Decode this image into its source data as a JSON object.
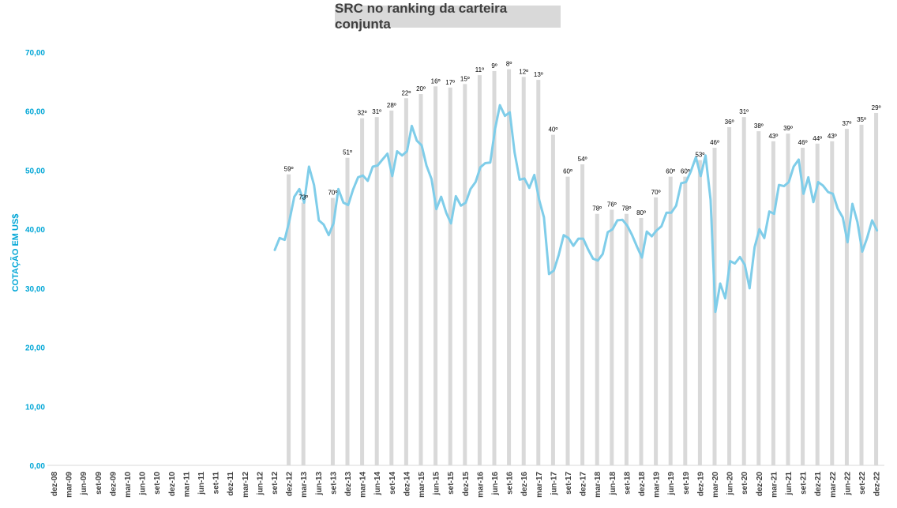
{
  "chart_data": {
    "type": "bar+line",
    "title": "SRC no ranking da carteira conjunta",
    "ylabel": "COTAÇÃO EM US$",
    "ylim": [
      0,
      70
    ],
    "yticks": [
      "0,00",
      "10,00",
      "20,00",
      "30,00",
      "40,00",
      "50,00",
      "60,00",
      "70,00"
    ],
    "line_color": "#7fcde9",
    "bar_color": "#d9d9d9",
    "axis_color": "#00a6d6",
    "xtick_labels": [
      "dez-08",
      "mar-09",
      "jun-09",
      "set-09",
      "dez-09",
      "mar-10",
      "jun-10",
      "set-10",
      "dez-10",
      "mar-11",
      "jun-11",
      "set-11",
      "dez-11",
      "mar-12",
      "jun-12",
      "set-12",
      "dez-12",
      "mar-13",
      "jun-13",
      "set-13",
      "dez-13",
      "mar-14",
      "jun-14",
      "set-14",
      "dez-14",
      "mar-15",
      "jun-15",
      "set-15",
      "dez-15",
      "mar-16",
      "jun-16",
      "set-16",
      "dez-16",
      "mar-17",
      "jun-17",
      "set-17",
      "dez-17",
      "mar-18",
      "jun-18",
      "set-18",
      "dez-18",
      "mar-19",
      "jun-19",
      "set-19",
      "dez-19",
      "mar-20",
      "jun-20",
      "set-20",
      "dez-20",
      "mar-21",
      "jun-21",
      "set-21",
      "dez-21",
      "mar-22",
      "jun-22",
      "set-22",
      "dez-22"
    ],
    "ranking_bars": [
      {
        "period": "dez-12",
        "value": 49.3,
        "label": "59º"
      },
      {
        "period": "mar-13",
        "value": 44.5,
        "label": "73º"
      },
      {
        "period": "set-13",
        "value": 45.3,
        "label": "70º"
      },
      {
        "period": "dez-13",
        "value": 52.1,
        "label": "51º"
      },
      {
        "period": "mar-14",
        "value": 58.8,
        "label": "32º"
      },
      {
        "period": "jun-14",
        "value": 59.0,
        "label": "31º"
      },
      {
        "period": "set-14",
        "value": 60.1,
        "label": "28º"
      },
      {
        "period": "dez-14",
        "value": 62.2,
        "label": "22º"
      },
      {
        "period": "mar-15",
        "value": 62.9,
        "label": "20º"
      },
      {
        "period": "jun-15",
        "value": 64.2,
        "label": "16º"
      },
      {
        "period": "set-15",
        "value": 64.0,
        "label": "17º"
      },
      {
        "period": "dez-15",
        "value": 64.6,
        "label": "15º"
      },
      {
        "period": "mar-16",
        "value": 66.1,
        "label": "11º"
      },
      {
        "period": "jun-16",
        "value": 66.8,
        "label": "9º"
      },
      {
        "period": "set-16",
        "value": 67.1,
        "label": "8º"
      },
      {
        "period": "dez-16",
        "value": 65.8,
        "label": "12º"
      },
      {
        "period": "mar-17",
        "value": 65.3,
        "label": "13º"
      },
      {
        "period": "jun-17",
        "value": 56.0,
        "label": "40º"
      },
      {
        "period": "set-17",
        "value": 48.9,
        "label": "60º"
      },
      {
        "period": "dez-17",
        "value": 51.0,
        "label": "54º"
      },
      {
        "period": "mar-18",
        "value": 42.6,
        "label": "78º"
      },
      {
        "period": "jun-18",
        "value": 43.3,
        "label": "76º"
      },
      {
        "period": "set-18",
        "value": 42.6,
        "label": "78º"
      },
      {
        "period": "dez-18",
        "value": 41.9,
        "label": "80º"
      },
      {
        "period": "mar-19",
        "value": 45.4,
        "label": "70º"
      },
      {
        "period": "jun-19",
        "value": 48.9,
        "label": "60º"
      },
      {
        "period": "set-19",
        "value": 48.9,
        "label": "60º"
      },
      {
        "period": "dez-19",
        "value": 51.7,
        "label": "53º"
      },
      {
        "period": "mar-20",
        "value": 53.8,
        "label": "46º"
      },
      {
        "period": "jun-20",
        "value": 57.3,
        "label": "36º"
      },
      {
        "period": "set-20",
        "value": 59.0,
        "label": "31º"
      },
      {
        "period": "dez-20",
        "value": 56.6,
        "label": "38º"
      },
      {
        "period": "mar-21",
        "value": 54.9,
        "label": "43º"
      },
      {
        "period": "jun-21",
        "value": 56.2,
        "label": "39º"
      },
      {
        "period": "set-21",
        "value": 53.8,
        "label": "46º"
      },
      {
        "period": "dez-21",
        "value": 54.5,
        "label": "44º"
      },
      {
        "period": "mar-22",
        "value": 54.9,
        "label": "43º"
      },
      {
        "period": "jun-22",
        "value": 57.0,
        "label": "37º"
      },
      {
        "period": "set-22",
        "value": 57.7,
        "label": "35º"
      },
      {
        "period": "dez-22",
        "value": 59.7,
        "label": "29º"
      }
    ],
    "price_series": [
      {
        "t": 15.0,
        "v": 36.5
      },
      {
        "t": 15.33,
        "v": 38.5
      },
      {
        "t": 15.67,
        "v": 38.2
      },
      {
        "t": 16.0,
        "v": 41.5
      },
      {
        "t": 16.33,
        "v": 45.5
      },
      {
        "t": 16.67,
        "v": 46.8
      },
      {
        "t": 17.0,
        "v": 44.5
      },
      {
        "t": 17.33,
        "v": 50.6
      },
      {
        "t": 17.67,
        "v": 47.5
      },
      {
        "t": 18.0,
        "v": 41.5
      },
      {
        "t": 18.33,
        "v": 40.8
      },
      {
        "t": 18.67,
        "v": 39.0
      },
      {
        "t": 19.0,
        "v": 41.0
      },
      {
        "t": 19.33,
        "v": 46.8
      },
      {
        "t": 19.67,
        "v": 44.5
      },
      {
        "t": 20.0,
        "v": 44.1
      },
      {
        "t": 20.33,
        "v": 46.7
      },
      {
        "t": 20.67,
        "v": 48.8
      },
      {
        "t": 21.0,
        "v": 49.1
      },
      {
        "t": 21.33,
        "v": 48.2
      },
      {
        "t": 21.67,
        "v": 50.6
      },
      {
        "t": 22.0,
        "v": 50.8
      },
      {
        "t": 22.33,
        "v": 51.8
      },
      {
        "t": 22.67,
        "v": 52.8
      },
      {
        "t": 23.0,
        "v": 49.0
      },
      {
        "t": 23.33,
        "v": 53.2
      },
      {
        "t": 23.67,
        "v": 52.5
      },
      {
        "t": 24.0,
        "v": 53.2
      },
      {
        "t": 24.33,
        "v": 57.5
      },
      {
        "t": 24.67,
        "v": 55.0
      },
      {
        "t": 25.0,
        "v": 54.2
      },
      {
        "t": 25.33,
        "v": 50.8
      },
      {
        "t": 25.67,
        "v": 48.5
      },
      {
        "t": 26.0,
        "v": 43.4
      },
      {
        "t": 26.33,
        "v": 45.5
      },
      {
        "t": 26.67,
        "v": 42.8
      },
      {
        "t": 27.0,
        "v": 41.0
      },
      {
        "t": 27.33,
        "v": 45.6
      },
      {
        "t": 27.67,
        "v": 44.0
      },
      {
        "t": 28.0,
        "v": 44.5
      },
      {
        "t": 28.33,
        "v": 46.8
      },
      {
        "t": 28.67,
        "v": 48.0
      },
      {
        "t": 29.0,
        "v": 50.5
      },
      {
        "t": 29.33,
        "v": 51.2
      },
      {
        "t": 29.67,
        "v": 51.3
      },
      {
        "t": 30.0,
        "v": 57.0
      },
      {
        "t": 30.33,
        "v": 61.0
      },
      {
        "t": 30.67,
        "v": 59.2
      },
      {
        "t": 31.0,
        "v": 59.8
      },
      {
        "t": 31.33,
        "v": 53.0
      },
      {
        "t": 31.67,
        "v": 48.4
      },
      {
        "t": 32.0,
        "v": 48.6
      },
      {
        "t": 32.33,
        "v": 47.0
      },
      {
        "t": 32.67,
        "v": 49.2
      },
      {
        "t": 33.0,
        "v": 45.0
      },
      {
        "t": 33.33,
        "v": 42.0
      },
      {
        "t": 33.67,
        "v": 32.4
      },
      {
        "t": 34.0,
        "v": 33.0
      },
      {
        "t": 34.33,
        "v": 35.6
      },
      {
        "t": 34.67,
        "v": 39.0
      },
      {
        "t": 35.0,
        "v": 38.5
      },
      {
        "t": 35.33,
        "v": 37.2
      },
      {
        "t": 35.67,
        "v": 38.4
      },
      {
        "t": 36.0,
        "v": 38.4
      },
      {
        "t": 36.33,
        "v": 36.6
      },
      {
        "t": 36.67,
        "v": 35.0
      },
      {
        "t": 37.0,
        "v": 34.7
      },
      {
        "t": 37.33,
        "v": 35.8
      },
      {
        "t": 37.67,
        "v": 39.5
      },
      {
        "t": 38.0,
        "v": 40.0
      },
      {
        "t": 38.33,
        "v": 41.5
      },
      {
        "t": 38.67,
        "v": 41.6
      },
      {
        "t": 39.0,
        "v": 40.6
      },
      {
        "t": 39.33,
        "v": 39.0
      },
      {
        "t": 39.67,
        "v": 37.0
      },
      {
        "t": 40.0,
        "v": 35.2
      },
      {
        "t": 40.33,
        "v": 39.6
      },
      {
        "t": 40.67,
        "v": 38.8
      },
      {
        "t": 41.0,
        "v": 39.8
      },
      {
        "t": 41.33,
        "v": 40.5
      },
      {
        "t": 41.67,
        "v": 42.8
      },
      {
        "t": 42.0,
        "v": 42.8
      },
      {
        "t": 42.33,
        "v": 44.0
      },
      {
        "t": 42.67,
        "v": 47.8
      },
      {
        "t": 43.0,
        "v": 48.0
      },
      {
        "t": 43.33,
        "v": 49.8
      },
      {
        "t": 43.67,
        "v": 52.2
      },
      {
        "t": 44.0,
        "v": 49.0
      },
      {
        "t": 44.33,
        "v": 52.5
      },
      {
        "t": 44.67,
        "v": 45.0
      },
      {
        "t": 45.0,
        "v": 26.0
      },
      {
        "t": 45.33,
        "v": 30.8
      },
      {
        "t": 45.67,
        "v": 28.3
      },
      {
        "t": 46.0,
        "v": 34.6
      },
      {
        "t": 46.33,
        "v": 34.2
      },
      {
        "t": 46.67,
        "v": 35.3
      },
      {
        "t": 47.0,
        "v": 34.0
      },
      {
        "t": 47.33,
        "v": 30.0
      },
      {
        "t": 47.67,
        "v": 37.0
      },
      {
        "t": 48.0,
        "v": 40.0
      },
      {
        "t": 48.33,
        "v": 38.5
      },
      {
        "t": 48.67,
        "v": 43.0
      },
      {
        "t": 49.0,
        "v": 42.6
      },
      {
        "t": 49.33,
        "v": 47.5
      },
      {
        "t": 49.67,
        "v": 47.3
      },
      {
        "t": 50.0,
        "v": 48.0
      },
      {
        "t": 50.33,
        "v": 50.6
      },
      {
        "t": 50.67,
        "v": 51.8
      },
      {
        "t": 51.0,
        "v": 46.0
      },
      {
        "t": 51.33,
        "v": 48.8
      },
      {
        "t": 51.67,
        "v": 44.6
      },
      {
        "t": 52.0,
        "v": 48.0
      },
      {
        "t": 52.33,
        "v": 47.4
      },
      {
        "t": 52.67,
        "v": 46.3
      },
      {
        "t": 53.0,
        "v": 46.0
      },
      {
        "t": 53.33,
        "v": 43.5
      },
      {
        "t": 53.67,
        "v": 42.0
      },
      {
        "t": 54.0,
        "v": 37.8
      },
      {
        "t": 54.33,
        "v": 44.3
      },
      {
        "t": 54.67,
        "v": 41.2
      },
      {
        "t": 55.0,
        "v": 36.2
      },
      {
        "t": 55.33,
        "v": 38.5
      },
      {
        "t": 55.67,
        "v": 41.5
      },
      {
        "t": 56.0,
        "v": 39.8
      }
    ]
  }
}
